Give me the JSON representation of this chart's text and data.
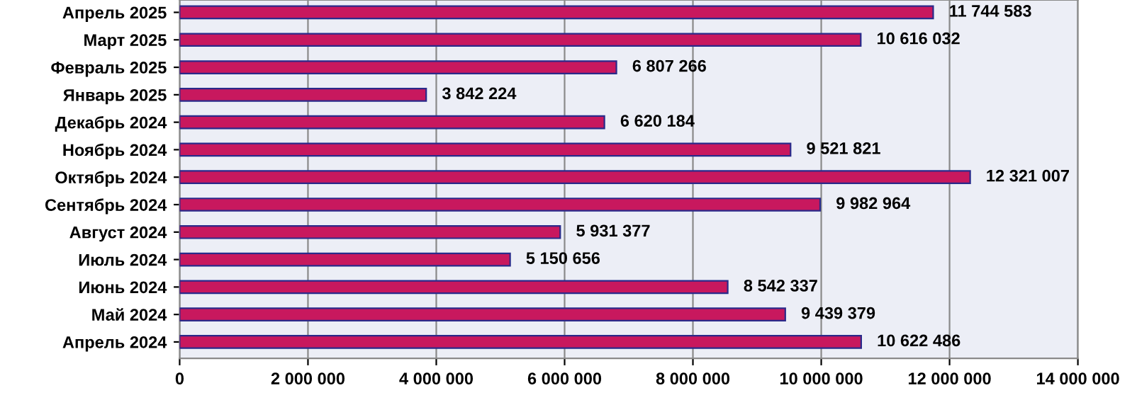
{
  "chart_data": {
    "type": "bar",
    "orientation": "horizontal",
    "categories": [
      "Апрель 2025",
      "Март 2025",
      "Февраль 2025",
      "Январь 2025",
      "Декабрь 2024",
      "Ноябрь 2024",
      "Октябрь 2024",
      "Сентябрь 2024",
      "Август 2024",
      "Июль 2024",
      "Июнь 2024",
      "Май 2024",
      "Апрель 2024"
    ],
    "values": [
      11744583,
      10616032,
      6807266,
      3842224,
      6620184,
      9521821,
      12321007,
      9982964,
      5931377,
      5150656,
      8542337,
      9439379,
      10622486
    ],
    "value_labels": [
      "11 744 583",
      "10 616 032",
      "6 807 266",
      "3 842 224",
      "6 620 184",
      "9 521 821",
      "12 321 007",
      "9 982 964",
      "5 931 377",
      "5 150 656",
      "8 542 337",
      "9 439 379",
      "10 622 486"
    ],
    "color": "#c8185e",
    "xlim": [
      0,
      14000000
    ],
    "xticks": [
      0,
      {
        "value": 2000000,
        "label": "2 000 000"
      },
      {
        "value": 4000000,
        "label": "4 000 000"
      },
      {
        "value": 6000000,
        "label": "6 000 000"
      },
      {
        "value": 8000000,
        "label": "8 000 000"
      },
      {
        "value": 10000000,
        "label": "10 000 000"
      },
      {
        "value": 12000000,
        "label": "12 000 000"
      },
      {
        "value": 14000000,
        "label": "14 000 000"
      }
    ],
    "grid": "x",
    "legend": false
  }
}
